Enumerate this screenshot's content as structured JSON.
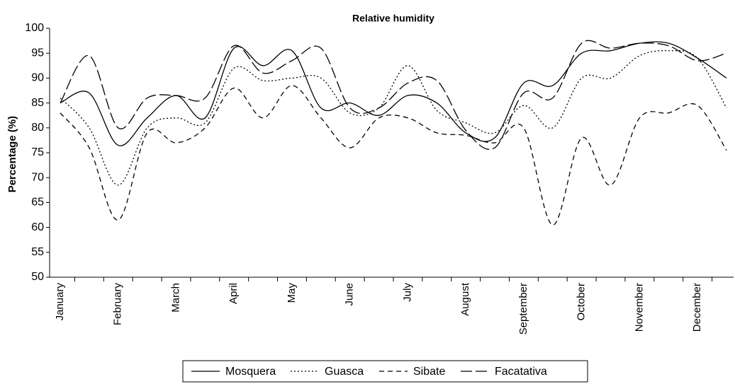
{
  "chart_data": {
    "type": "line",
    "title": "Relative humidity",
    "y_label": "Percentage (%)",
    "x": [
      "January",
      null,
      "February",
      null,
      "March",
      null,
      "April",
      null,
      "May",
      null,
      "June",
      null,
      "July",
      null,
      "August",
      null,
      "September",
      null,
      "October",
      null,
      "November",
      null,
      "December",
      null
    ],
    "series": [
      {
        "name": "Mosquera",
        "color": "#000000",
        "dash": "solid",
        "values": [
          85,
          87,
          76.5,
          82,
          86.5,
          82,
          96,
          92.5,
          95.5,
          84,
          85,
          82.5,
          86.5,
          85,
          79,
          78,
          89,
          88.5,
          95,
          95.5,
          97,
          97,
          94,
          90
        ]
      },
      {
        "name": "Guasca",
        "color": "#000000",
        "dash": "dotted",
        "values": [
          86,
          80,
          68.5,
          80,
          82,
          81,
          92,
          89.5,
          90,
          90,
          83,
          84,
          92.5,
          83.5,
          81,
          79,
          84.5,
          80,
          90,
          90,
          94.5,
          95.5,
          94,
          84
        ]
      },
      {
        "name": "Sibate",
        "color": "#000000",
        "dash": "dashed",
        "values": [
          83,
          76,
          61.5,
          79,
          77,
          80,
          88,
          82,
          88.5,
          82,
          76,
          82,
          82,
          79,
          78.5,
          77,
          80,
          60.5,
          78,
          68.5,
          82,
          83,
          84.5,
          75.5
        ]
      },
      {
        "name": "Facatativa",
        "color": "#000000",
        "dash": "longdash",
        "values": [
          85,
          94.5,
          80,
          86,
          86.5,
          86,
          96.5,
          91,
          93.5,
          96,
          84,
          84,
          89,
          89.5,
          79.5,
          76,
          87,
          86,
          97,
          96,
          97,
          96.5,
          93.5,
          95
        ]
      }
    ],
    "ylim": [
      50,
      100
    ],
    "yticks": [
      50,
      55,
      60,
      65,
      70,
      75,
      80,
      85,
      90,
      95,
      100
    ],
    "legend": "bottom"
  }
}
